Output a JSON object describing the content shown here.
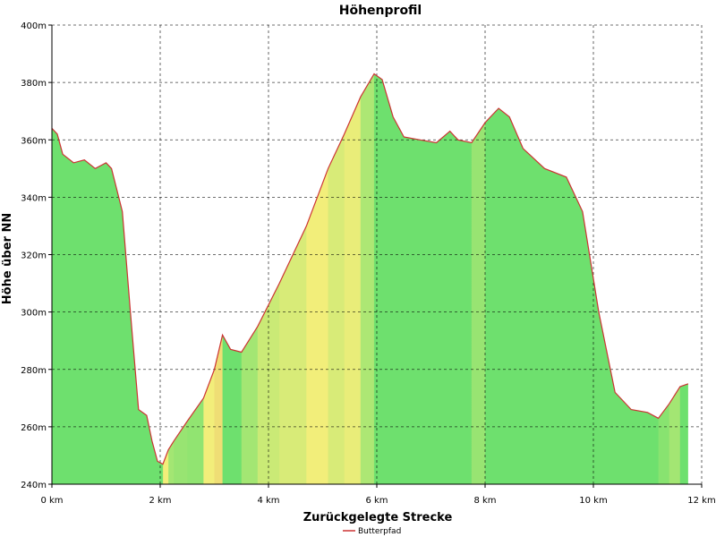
{
  "chart_data": {
    "type": "area",
    "title": "Höhenprofil",
    "xlabel": "Zurückgelegte Strecke",
    "ylabel": "Höhe über NN",
    "xlim": [
      0,
      12
    ],
    "ylim": [
      240,
      400
    ],
    "x_ticks": [
      "0 km",
      "2 km",
      "4 km",
      "6 km",
      "8 km",
      "10 km",
      "12 km"
    ],
    "x_tick_values": [
      0,
      2,
      4,
      6,
      8,
      10,
      12
    ],
    "y_ticks": [
      "240m",
      "260m",
      "280m",
      "300m",
      "320m",
      "340m",
      "360m",
      "380m",
      "400m"
    ],
    "y_tick_values": [
      240,
      260,
      280,
      300,
      320,
      340,
      360,
      380,
      400
    ],
    "grid": true,
    "legend_position": "bottom-center",
    "series": [
      {
        "name": "Butterpfad",
        "line_color": "#cc3333",
        "x": [
          0,
          0.1,
          0.2,
          0.4,
          0.6,
          0.8,
          1.0,
          1.1,
          1.3,
          1.45,
          1.6,
          1.75,
          1.85,
          1.95,
          2.05,
          2.15,
          2.25,
          2.5,
          2.8,
          3.0,
          3.15,
          3.3,
          3.5,
          3.8,
          4.2,
          4.7,
          5.1,
          5.4,
          5.7,
          5.95,
          6.1,
          6.3,
          6.5,
          6.8,
          7.1,
          7.35,
          7.5,
          7.75,
          8.0,
          8.25,
          8.45,
          8.7,
          9.1,
          9.5,
          9.8,
          10.1,
          10.4,
          10.7,
          11.0,
          11.2,
          11.4,
          11.6,
          11.75
        ],
        "y": [
          364,
          362,
          355,
          352,
          353,
          350,
          352,
          350,
          335,
          300,
          266,
          264,
          255,
          248,
          247,
          252,
          255,
          262,
          270,
          280,
          292,
          287,
          286,
          295,
          310,
          330,
          350,
          362,
          375,
          383,
          381,
          368,
          361,
          360,
          359,
          363,
          360,
          359,
          366,
          371,
          368,
          357,
          350,
          347,
          335,
          300,
          272,
          266,
          265,
          263,
          268,
          274,
          275
        ]
      }
    ],
    "gradient_colors": {
      "flat": "#6ee06e",
      "moderate": "#f2ee7a",
      "steep": "#d04a44"
    }
  }
}
